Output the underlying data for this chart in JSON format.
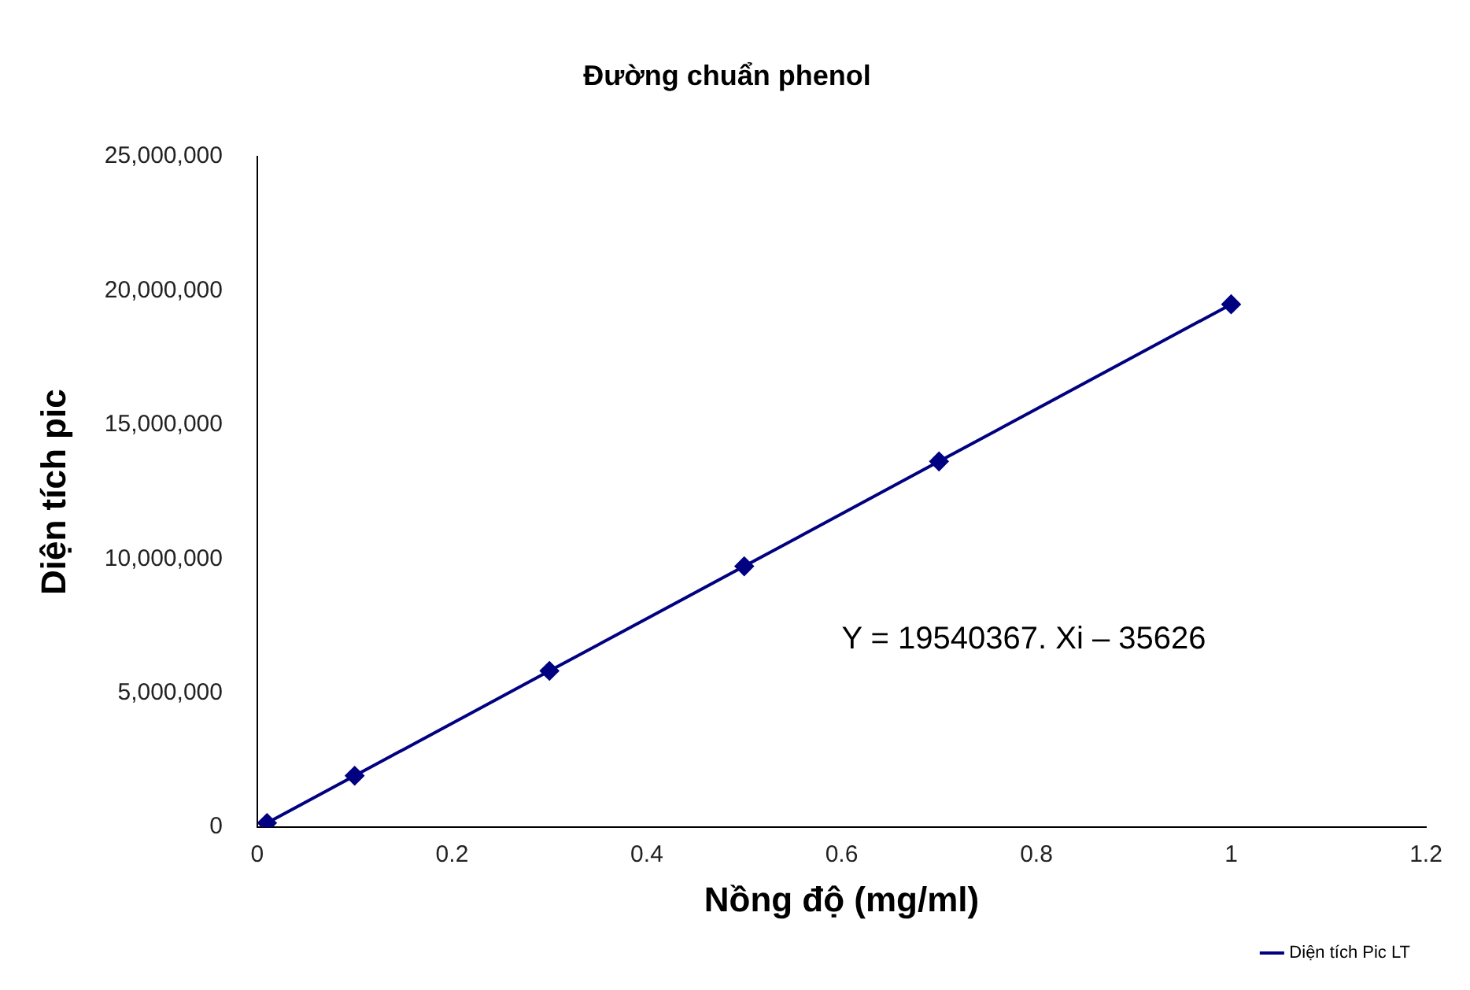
{
  "chart_data": {
    "type": "line",
    "title": "Đường chuẩn phenol",
    "xlabel": "Nồng độ (mg/ml)",
    "ylabel": "Diện tích pic",
    "x": [
      0.01,
      0.1,
      0.3,
      0.5,
      0.7,
      1
    ],
    "series": [
      {
        "name": "Diện tích Pic LT",
        "color": "#000080",
        "values": [
          160000,
          1920000,
          5830000,
          9730000,
          13640000,
          19500000
        ]
      }
    ],
    "xlim": [
      0,
      1.2
    ],
    "xticks": [
      0,
      0.2,
      0.4,
      0.6,
      0.8,
      1,
      1.2
    ],
    "ylim": [
      0,
      25000000
    ],
    "yticks": [
      0,
      {
        "value": 5000000,
        "label": "5,000,000"
      },
      {
        "value": 10000000,
        "label": "10,000,000"
      },
      {
        "value": 15000000,
        "label": "15,000,000"
      },
      {
        "value": 20000000,
        "label": "20,000,000"
      },
      {
        "value": 25000000,
        "label": "25,000,000"
      }
    ],
    "annotations": [
      "Y = 19540367. Xi – 35626"
    ],
    "grid": false,
    "legend": "bottom right",
    "marker": "diamond",
    "line_style": "solid"
  }
}
